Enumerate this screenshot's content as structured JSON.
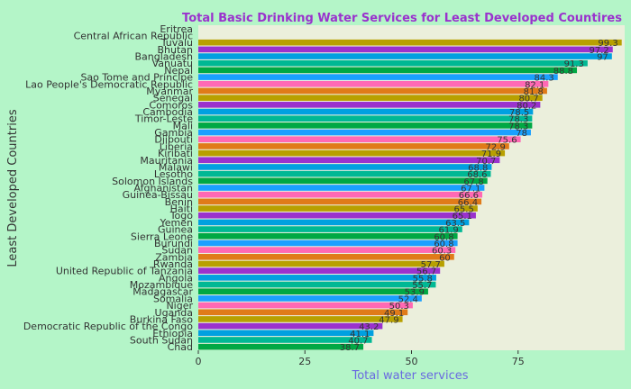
{
  "chart_data": {
    "type": "bar",
    "orientation": "horizontal",
    "title": "Total Basic Drinking Water Services for Least Developed Countires",
    "xlabel": "Total water services",
    "ylabel": "Least Developed Countries",
    "xlim": [
      0,
      100
    ],
    "xticks": [
      0,
      25,
      50,
      75
    ],
    "grid": false,
    "legend": "none",
    "colors": {
      "background": "#b4f5c8",
      "panel": "#ebefdc",
      "title": "#9a32cd",
      "xlabel": "#6a6ae0",
      "ylabel": "#333333",
      "palette": [
        "#ff69b4",
        "#e07b19",
        "#b8a000",
        "#9a32cd",
        "#00a0e0",
        "#00b894",
        "#00a844",
        "#1aa0ff"
      ]
    },
    "categories": [
      "Eritrea",
      "Central African Republic",
      "Tuvalu",
      "Bhutan",
      "Bangladesh",
      "Vanuatu",
      "Nepal",
      "Sao Tome and Principe",
      "Lao People's Democratic Republic",
      "Myanmar",
      "Senegal",
      "Comoros",
      "Cambodia",
      "Timor-Leste",
      "Mali",
      "Gambia",
      "Djibouti",
      "Liberia",
      "Kiribati",
      "Mauritania",
      "Malawi",
      "Lesotho",
      "Solomon Islands",
      "Afghanistan",
      "Guinea-Bissau",
      "Benin",
      "Haiti",
      "Togo",
      "Yemen",
      "Guinea",
      "Sierra Leone",
      "Burundi",
      "Sudan",
      "Zambia",
      "Rwanda",
      "United Republic of Tanzania",
      "Angola",
      "Mozambique",
      "Madagascar",
      "Somalia",
      "Niger",
      "Uganda",
      "Burkina Faso",
      "Democratic Republic of the Congo",
      "Ethiopia",
      "South Sudan",
      "Chad"
    ],
    "values": [
      null,
      null,
      99.3,
      97.2,
      97,
      91.3,
      88.8,
      84.3,
      82.1,
      81.8,
      80.7,
      80.2,
      78.5,
      78.3,
      78.3,
      78,
      75.6,
      72.9,
      71.9,
      70.7,
      68.8,
      68.6,
      67.8,
      67.1,
      66.6,
      66.4,
      65.5,
      65.1,
      63.5,
      61.9,
      60.8,
      60.8,
      60.3,
      60,
      57.7,
      56.7,
      55.8,
      55.7,
      53.9,
      52.4,
      50.3,
      49.1,
      47.9,
      43.2,
      41.1,
      40.7,
      38.7
    ],
    "value_labels": [
      "",
      "",
      "99.3",
      "97.2",
      "97",
      "91.3",
      "88.8",
      "84.3",
      "82.1",
      "81.8",
      "80.7",
      "80.2",
      "78.5",
      "78.3",
      "78.3",
      "78",
      "75.6",
      "72.9",
      "71.9",
      "70.7",
      "68.8",
      "68.6",
      "67.8",
      "67.1",
      "66.6",
      "66.4",
      "65.5",
      "65.1",
      "63.5",
      "61.9",
      "60.8",
      "60.8",
      "60.3",
      "60",
      "57.7",
      "56.7",
      "55.8",
      "55.7",
      "53.9",
      "52.4",
      "50.3",
      "49.1",
      "47.9",
      "43.2",
      "41.1",
      "40.7",
      "38.7"
    ]
  }
}
